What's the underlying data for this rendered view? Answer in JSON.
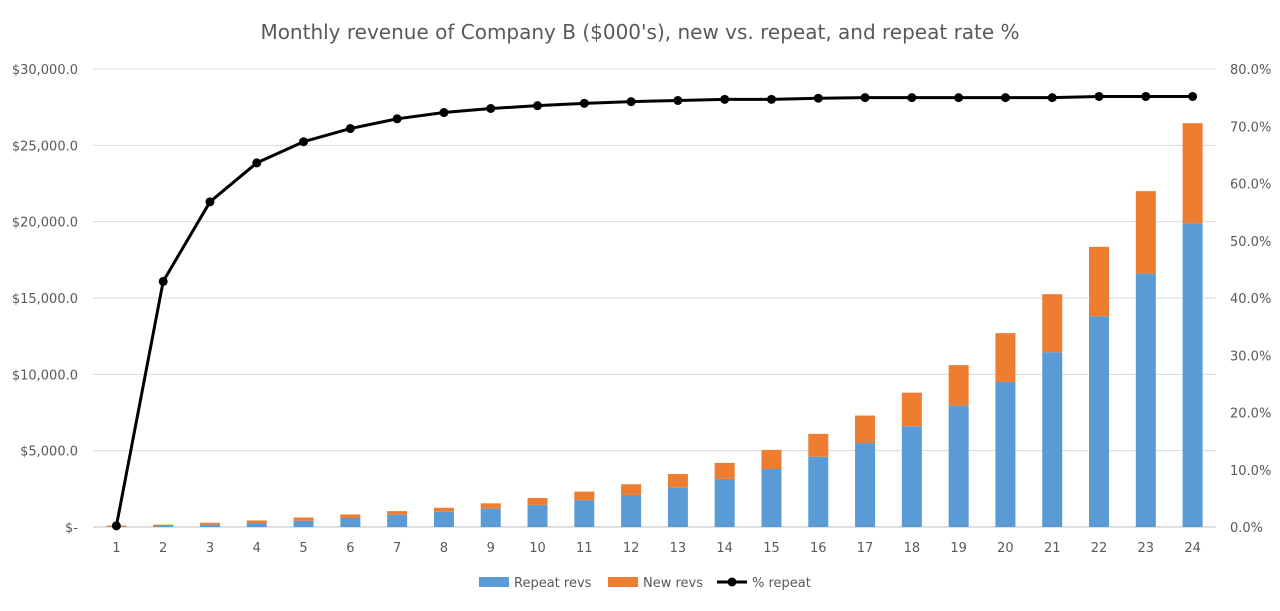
{
  "chart_data": {
    "type": "bar",
    "subtype": "stacked-bar-with-line-secondary-axis",
    "title": "Monthly revenue of Company B ($000's), new vs. repeat, and repeat rate %",
    "xlabel": "",
    "ylabel": "",
    "categories": [
      "1",
      "2",
      "3",
      "4",
      "5",
      "6",
      "7",
      "8",
      "9",
      "10",
      "11",
      "12",
      "13",
      "14",
      "15",
      "16",
      "17",
      "18",
      "19",
      "20",
      "21",
      "22",
      "23",
      "24"
    ],
    "series": [
      {
        "name": "Repeat revs",
        "kind": "bar",
        "axis": "left",
        "color": "#5b9bd5",
        "values": [
          0,
          65,
          150,
          260,
          410,
          590,
          800,
          1000,
          1200,
          1450,
          1750,
          2100,
          2600,
          3150,
          3800,
          4600,
          5500,
          6600,
          7950,
          9500,
          11450,
          13800,
          16600,
          19900
        ]
      },
      {
        "name": "New revs",
        "kind": "bar",
        "axis": "left",
        "color": "#ed7d31",
        "values": [
          90,
          90,
          130,
          170,
          210,
          230,
          240,
          260,
          350,
          450,
          570,
          700,
          870,
          1050,
          1250,
          1500,
          1800,
          2200,
          2650,
          3200,
          3800,
          4550,
          5400,
          6550
        ]
      },
      {
        "name": "% repeat",
        "kind": "line",
        "axis": "right",
        "color": "#000000",
        "values": [
          0.2,
          42.9,
          56.8,
          63.6,
          67.3,
          69.6,
          71.3,
          72.4,
          73.1,
          73.6,
          74.0,
          74.3,
          74.5,
          74.7,
          74.7,
          74.9,
          75.0,
          75.0,
          75.0,
          75.0,
          75.0,
          75.2,
          75.2,
          75.2
        ]
      }
    ],
    "y_left": {
      "ylim": [
        0,
        30000
      ],
      "ticks": [
        0,
        5000,
        10000,
        15000,
        20000,
        25000,
        30000
      ],
      "tick_labels": [
        "$-",
        "$5,000.0",
        "$10,000.0",
        "$15,000.0",
        "$20,000.0",
        "$25,000.0",
        "$30,000.0"
      ]
    },
    "y_right": {
      "ylim": [
        0,
        80
      ],
      "ticks": [
        0,
        10,
        20,
        30,
        40,
        50,
        60,
        70,
        80
      ],
      "tick_labels": [
        "0.0%",
        "10.0%",
        "20.0%",
        "30.0%",
        "40.0%",
        "50.0%",
        "60.0%",
        "70.0%",
        "80.0%"
      ]
    },
    "grid": true,
    "legend_position": "bottom-center",
    "legend": [
      "Repeat revs",
      "New revs",
      "% repeat"
    ]
  }
}
